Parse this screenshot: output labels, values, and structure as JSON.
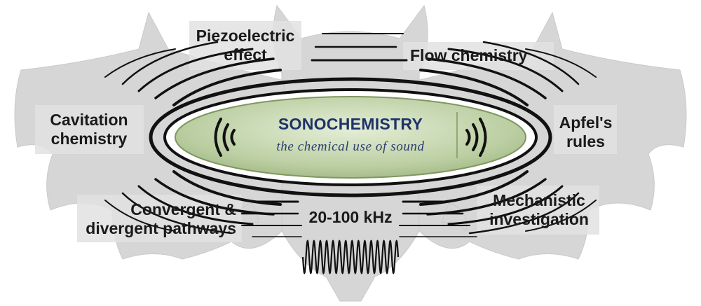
{
  "center": {
    "title": "SONOCHEMISTRY",
    "subtitle": "the chemical use of sound"
  },
  "labels": {
    "piezoelectric": [
      "Piezoelectric",
      "effect"
    ],
    "flow": [
      "Flow chemistry"
    ],
    "cavitation": [
      "Cavitation",
      "chemistry"
    ],
    "apfel": [
      "Apfel's",
      "rules"
    ],
    "convergent": [
      "Convergent &",
      "divergent pathways"
    ],
    "mechanistic": [
      "Mechanistic",
      "investigation"
    ],
    "frequency": [
      "20-100 kHz"
    ]
  },
  "colors": {
    "bat": "#d4d4d4",
    "ellipse_fill": "#bccfa3",
    "ellipse_stroke": "#7f9760",
    "title": "#1f3268",
    "rings": "#111111"
  },
  "icons": {
    "left_wave": "sound-wave-left-icon",
    "right_wave": "sound-wave-right-icon",
    "bat_silhouette": "bat-silhouette-icon",
    "waveform": "sine-waveform-icon"
  }
}
